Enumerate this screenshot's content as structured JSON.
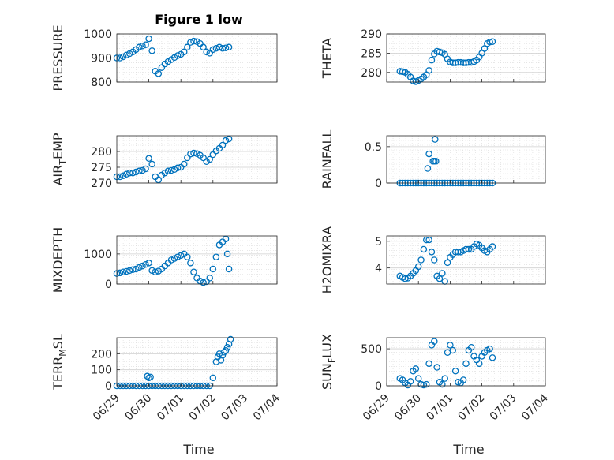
{
  "chart_data": {
    "title": "Figure 1 low",
    "x_ticks": [
      "06/29",
      "06/30",
      "07/01",
      "07/02",
      "07/03",
      "07/04"
    ],
    "x_label": "Time",
    "marker_color": "#0072BD",
    "grid": true,
    "minor_grid": true,
    "marker": "open-circle",
    "panels": [
      {
        "id": "pressure",
        "ylabel": "PRESSURE",
        "ylabel_sub": "",
        "yticks": [
          "800",
          "900",
          "1000"
        ],
        "ytick_values": [
          800,
          900,
          1000
        ],
        "ylim": [
          800,
          1000
        ],
        "xlim": [
          0,
          5
        ],
        "x_tick_labels_shown": false,
        "x": [
          0.0,
          0.1,
          0.2,
          0.3,
          0.4,
          0.5,
          0.6,
          0.7,
          0.8,
          0.9,
          1.0,
          1.1,
          1.2,
          1.3,
          1.4,
          1.5,
          1.6,
          1.7,
          1.8,
          1.9,
          2.0,
          2.1,
          2.2,
          2.3,
          2.4,
          2.5,
          2.6,
          2.7,
          2.8,
          2.9,
          3.0,
          3.1,
          3.2,
          3.3,
          3.4,
          3.5
        ],
        "y": [
          900,
          900,
          905,
          912,
          918,
          925,
          935,
          945,
          950,
          955,
          980,
          930,
          845,
          835,
          860,
          875,
          885,
          893,
          902,
          910,
          915,
          925,
          945,
          965,
          970,
          968,
          960,
          945,
          925,
          920,
          935,
          940,
          945,
          940,
          942,
          945
        ]
      },
      {
        "id": "theta",
        "ylabel": "THETA",
        "ylabel_sub": "",
        "yticks": [
          "280",
          "285",
          "290"
        ],
        "ytick_values": [
          280,
          285,
          290
        ],
        "ylim": [
          277.5,
          290
        ],
        "xlim": [
          -0.5,
          5.5
        ],
        "x_tick_labels_shown": false,
        "x": [
          0.0,
          0.1,
          0.2,
          0.3,
          0.4,
          0.5,
          0.6,
          0.7,
          0.8,
          0.9,
          1.0,
          1.1,
          1.2,
          1.3,
          1.4,
          1.5,
          1.6,
          1.7,
          1.8,
          1.9,
          2.0,
          2.1,
          2.2,
          2.3,
          2.4,
          2.5,
          2.6,
          2.7,
          2.8,
          2.9,
          3.0,
          3.1,
          3.2,
          3.3,
          3.4,
          3.5
        ],
        "y": [
          280.3,
          280.2,
          280.0,
          279.5,
          278.8,
          277.8,
          277.6,
          277.9,
          278.3,
          278.8,
          279.4,
          280.5,
          283.2,
          284.8,
          285.5,
          285.3,
          285.1,
          284.7,
          283.5,
          282.7,
          282.5,
          282.5,
          282.6,
          282.6,
          282.5,
          282.5,
          282.6,
          282.6,
          282.8,
          283.2,
          284.0,
          285.0,
          286.2,
          287.5,
          287.9,
          288.0
        ]
      },
      {
        "id": "air_temp",
        "ylabel": "AIR",
        "ylabel_sub": "T",
        "ylabel_suffix": "EMP",
        "yticks": [
          "270",
          "275",
          "280"
        ],
        "ytick_values": [
          270,
          275,
          280
        ],
        "ylim": [
          270,
          285
        ],
        "xlim": [
          0,
          5
        ],
        "x_tick_labels_shown": false,
        "x": [
          0.0,
          0.1,
          0.2,
          0.3,
          0.4,
          0.5,
          0.6,
          0.7,
          0.8,
          0.9,
          1.0,
          1.1,
          1.2,
          1.3,
          1.4,
          1.5,
          1.6,
          1.7,
          1.8,
          1.9,
          2.0,
          2.1,
          2.2,
          2.3,
          2.4,
          2.5,
          2.6,
          2.7,
          2.8,
          2.9,
          3.0,
          3.1,
          3.2,
          3.3,
          3.4,
          3.5
        ],
        "y": [
          272,
          272,
          272.3,
          272.8,
          273.2,
          273.2,
          273.5,
          273.8,
          274.0,
          274.5,
          277.8,
          276.0,
          272.0,
          271.0,
          272.5,
          273.2,
          273.8,
          274.0,
          274.3,
          274.8,
          275.0,
          276.0,
          278.0,
          279.2,
          279.5,
          279.3,
          278.8,
          278.0,
          276.8,
          277.5,
          279.0,
          280.2,
          281.0,
          282.0,
          283.5,
          284.0
        ]
      },
      {
        "id": "rainfall",
        "ylabel": "RAINFALL",
        "ylabel_sub": "",
        "yticks": [
          "0",
          "0.5"
        ],
        "ytick_values": [
          0,
          0.5
        ],
        "ylim": [
          0,
          0.65
        ],
        "xlim": [
          -0.5,
          5.5
        ],
        "x_tick_labels_shown": false,
        "x": [
          0.0,
          0.1,
          0.2,
          0.3,
          0.4,
          0.5,
          0.6,
          0.7,
          0.8,
          0.9,
          1.0,
          1.1,
          1.2,
          1.3,
          1.4,
          1.5,
          1.6,
          1.7,
          1.8,
          1.9,
          2.0,
          2.1,
          2.2,
          2.3,
          2.4,
          2.5,
          2.6,
          2.7,
          2.8,
          2.9,
          3.0,
          3.1,
          3.2,
          3.3,
          3.4,
          3.5,
          1.05,
          1.1,
          1.25,
          1.3,
          1.33,
          1.36
        ],
        "y": [
          0,
          0,
          0,
          0,
          0,
          0,
          0,
          0,
          0,
          0,
          0,
          0,
          0,
          0,
          0,
          0,
          0,
          0,
          0,
          0,
          0,
          0,
          0,
          0,
          0,
          0,
          0,
          0,
          0,
          0,
          0,
          0,
          0,
          0,
          0,
          0,
          0.2,
          0.4,
          0.3,
          0.3,
          0.6,
          0.3
        ]
      },
      {
        "id": "mixdepth",
        "ylabel": "MIXDEPTH",
        "ylabel_sub": "",
        "yticks": [
          "0",
          "1000"
        ],
        "ytick_values": [
          0,
          1000
        ],
        "ylim": [
          0,
          1600
        ],
        "xlim": [
          0,
          5
        ],
        "x_tick_labels_shown": false,
        "x": [
          0.0,
          0.1,
          0.2,
          0.3,
          0.4,
          0.5,
          0.6,
          0.7,
          0.8,
          0.9,
          1.0,
          1.1,
          1.2,
          1.3,
          1.4,
          1.5,
          1.6,
          1.7,
          1.8,
          1.9,
          2.0,
          2.1,
          2.2,
          2.3,
          2.4,
          2.5,
          2.6,
          2.7,
          2.8,
          2.9,
          3.0,
          3.1,
          3.2,
          3.3,
          3.4,
          3.45,
          3.5
        ],
        "y": [
          350,
          370,
          400,
          420,
          450,
          480,
          500,
          550,
          600,
          650,
          700,
          450,
          400,
          430,
          500,
          600,
          700,
          800,
          850,
          900,
          950,
          1000,
          900,
          700,
          400,
          200,
          100,
          50,
          80,
          200,
          500,
          900,
          1300,
          1400,
          1500,
          1000,
          500
        ]
      },
      {
        "id": "h2omixra",
        "ylabel": "H2OMIXRA",
        "ylabel_sub": "",
        "yticks": [
          "4",
          "5"
        ],
        "ytick_values": [
          4,
          5
        ],
        "ylim": [
          3.4,
          5.2
        ],
        "xlim": [
          -0.5,
          5.5
        ],
        "x_tick_labels_shown": false,
        "x": [
          0.0,
          0.1,
          0.2,
          0.3,
          0.4,
          0.5,
          0.6,
          0.7,
          0.8,
          0.9,
          1.0,
          1.1,
          1.2,
          1.3,
          1.4,
          1.5,
          1.6,
          1.7,
          1.8,
          1.9,
          2.0,
          2.1,
          2.2,
          2.3,
          2.4,
          2.5,
          2.6,
          2.7,
          2.8,
          2.9,
          3.0,
          3.1,
          3.2,
          3.3,
          3.4,
          3.5
        ],
        "y": [
          3.7,
          3.65,
          3.6,
          3.62,
          3.7,
          3.8,
          3.9,
          4.05,
          4.3,
          4.7,
          5.05,
          5.05,
          4.6,
          4.3,
          3.7,
          3.6,
          3.8,
          3.5,
          4.2,
          4.4,
          4.5,
          4.6,
          4.6,
          4.6,
          4.65,
          4.7,
          4.7,
          4.7,
          4.8,
          4.9,
          4.85,
          4.75,
          4.65,
          4.6,
          4.7,
          4.8
        ]
      },
      {
        "id": "terr_msl",
        "ylabel": "TERR",
        "ylabel_sub": "M",
        "ylabel_suffix": "SL",
        "yticks": [
          "0",
          "100",
          "200"
        ],
        "ytick_values": [
          0,
          100,
          200
        ],
        "ylim": [
          0,
          300
        ],
        "xlim": [
          0,
          5
        ],
        "x_tick_labels_shown": true,
        "x": [
          0.0,
          0.1,
          0.2,
          0.3,
          0.4,
          0.5,
          0.6,
          0.7,
          0.8,
          0.9,
          1.0,
          1.1,
          1.2,
          1.3,
          1.4,
          1.5,
          1.6,
          1.7,
          1.8,
          1.9,
          2.0,
          2.1,
          2.2,
          2.3,
          2.4,
          2.5,
          2.6,
          2.7,
          2.8,
          2.9,
          3.0,
          3.1,
          3.2,
          3.3,
          3.4,
          3.5,
          0.95,
          1.0,
          1.05,
          3.15,
          3.25,
          3.35,
          3.45,
          3.55
        ],
        "y": [
          0,
          0,
          0,
          0,
          0,
          0,
          0,
          0,
          0,
          0,
          0,
          0,
          0,
          0,
          0,
          0,
          0,
          0,
          0,
          0,
          0,
          0,
          0,
          0,
          0,
          0,
          0,
          0,
          0,
          0,
          50,
          150,
          200,
          190,
          220,
          260,
          60,
          50,
          55,
          180,
          160,
          210,
          240,
          290
        ]
      },
      {
        "id": "sun_flux",
        "ylabel": "SUN",
        "ylabel_sub": "F",
        "ylabel_suffix": "LUX",
        "yticks": [
          "0",
          "500"
        ],
        "ytick_values": [
          0,
          500
        ],
        "ylim": [
          0,
          650
        ],
        "xlim": [
          -0.5,
          5.5
        ],
        "x_tick_labels_shown": true,
        "x": [
          0.0,
          0.1,
          0.2,
          0.3,
          0.4,
          0.5,
          0.6,
          0.7,
          0.8,
          0.9,
          1.0,
          1.1,
          1.2,
          1.3,
          1.4,
          1.5,
          1.6,
          1.7,
          1.8,
          1.9,
          2.0,
          2.1,
          2.2,
          2.3,
          2.4,
          2.5,
          2.6,
          2.7,
          2.8,
          2.9,
          3.0,
          3.1,
          3.2,
          3.3,
          3.4,
          3.5
        ],
        "y": [
          100,
          80,
          40,
          10,
          60,
          200,
          230,
          100,
          20,
          10,
          20,
          300,
          550,
          600,
          250,
          50,
          20,
          100,
          450,
          550,
          480,
          200,
          50,
          40,
          80,
          300,
          480,
          520,
          400,
          350,
          300,
          400,
          450,
          480,
          500,
          380
        ]
      }
    ]
  }
}
